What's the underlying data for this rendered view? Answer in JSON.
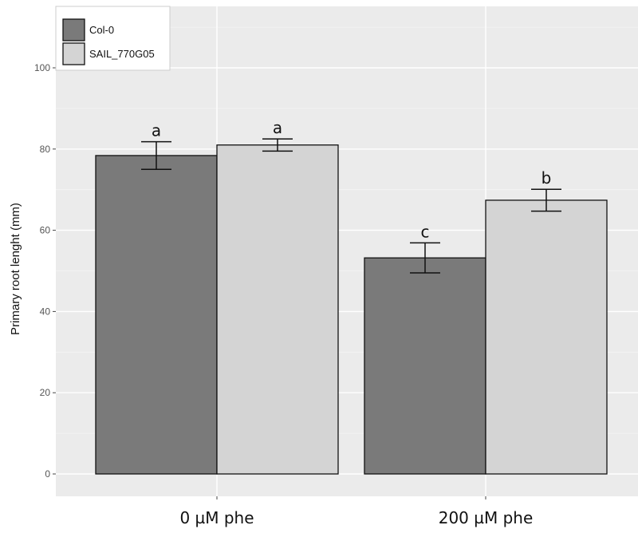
{
  "chart_data": {
    "type": "bar",
    "ylabel": "Primary root lenght (mm)",
    "xlabel": "",
    "categories": [
      "0 µM phe",
      "200 µM phe"
    ],
    "ylim": [
      0,
      115
    ],
    "yticks": [
      0,
      20,
      40,
      60,
      80,
      100
    ],
    "grid": true,
    "legend_position": "top-left",
    "series": [
      {
        "name": "Col-0",
        "color": "#7a7a7a",
        "values": [
          78.4,
          53.2
        ],
        "error": [
          3.4,
          3.7
        ],
        "significance": [
          "a",
          "c"
        ]
      },
      {
        "name": "SAIL_770G05",
        "color": "#d4d4d4",
        "values": [
          81.0,
          67.4
        ],
        "error": [
          1.5,
          2.7
        ],
        "significance": [
          "a",
          "b"
        ]
      }
    ]
  }
}
